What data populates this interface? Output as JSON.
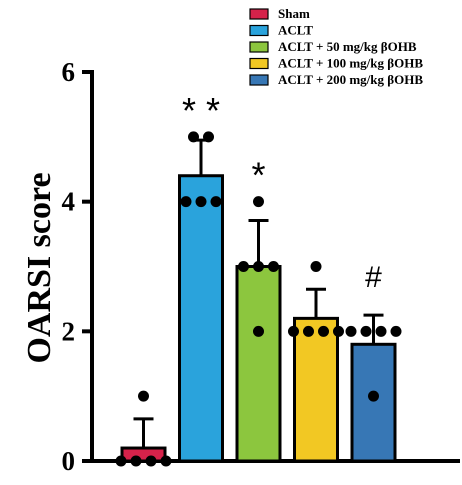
{
  "chart_data": {
    "type": "bar",
    "title": "",
    "xlabel": "",
    "ylabel": "OARSI score",
    "ylim": [
      0,
      6
    ],
    "yticks": [
      0,
      2,
      4,
      6
    ],
    "grid": false,
    "legend_position": "top-right",
    "series": [
      {
        "name": "Sham",
        "mean": 0.2,
        "sd": 0.45,
        "points": [
          0,
          0,
          0,
          0,
          1
        ],
        "color": "#d6224a",
        "significance": ""
      },
      {
        "name": "ACLT",
        "mean": 4.4,
        "sd": 0.55,
        "points": [
          5,
          5,
          4,
          4,
          4
        ],
        "color": "#2aa3dc",
        "significance": "* *"
      },
      {
        "name": "ACLT + 50 mg/kg βOHB",
        "mean": 3.0,
        "sd": 0.71,
        "points": [
          4,
          3,
          3,
          3,
          2
        ],
        "color": "#8cc63e",
        "significance": "*"
      },
      {
        "name": "ACLT + 100 mg/kg βOHB",
        "mean": 2.2,
        "sd": 0.45,
        "points": [
          3,
          2,
          2,
          2,
          2
        ],
        "color": "#f2c823",
        "significance": ""
      },
      {
        "name": "ACLT + 200 mg/kg βOHB",
        "mean": 1.8,
        "sd": 0.45,
        "points": [
          2,
          2,
          2,
          2,
          1
        ],
        "color": "#3777b5",
        "significance": "#"
      }
    ]
  }
}
